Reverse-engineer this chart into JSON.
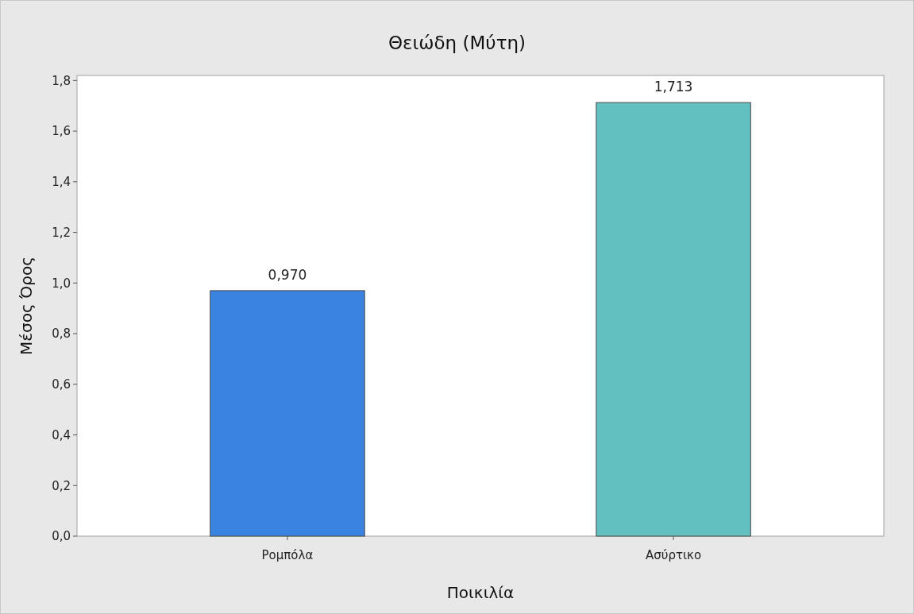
{
  "chart_data": {
    "type": "bar",
    "title": "Θειώδη (Μύτη)",
    "xlabel": "Ποικιλία",
    "ylabel": "Μέσος Όρος",
    "categories": [
      "Ρομπόλα",
      "Ασύρτικο"
    ],
    "values": [
      0.97,
      1.713
    ],
    "colors": [
      "#3a84e0",
      "#62c0c0"
    ],
    "value_labels": [
      "0,970",
      "1,713"
    ],
    "ylim": [
      0,
      1.82
    ],
    "yticks": [
      {
        "value": 0,
        "label": "0,0"
      },
      {
        "value": 0.2,
        "label": "0,2"
      },
      {
        "value": 0.4,
        "label": "0,4"
      },
      {
        "value": 0.6,
        "label": "0,6"
      },
      {
        "value": 0.8,
        "label": "0,8"
      },
      {
        "value": 1,
        "label": "1,0"
      },
      {
        "value": 1.2,
        "label": "1,2"
      },
      {
        "value": 1.4,
        "label": "1,4"
      },
      {
        "value": 1.6,
        "label": "1,6"
      },
      {
        "value": 1.8,
        "label": "1,8"
      }
    ],
    "grid": false
  }
}
